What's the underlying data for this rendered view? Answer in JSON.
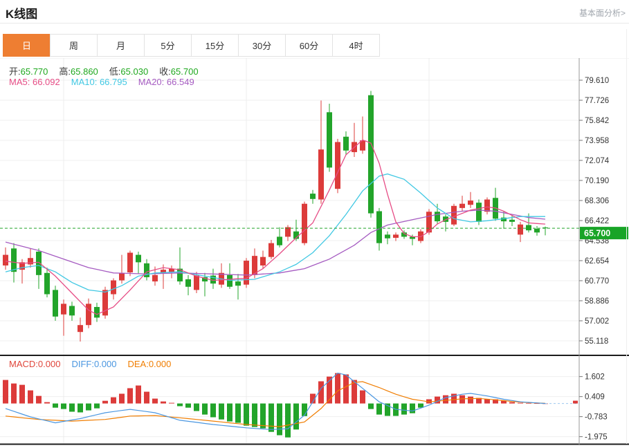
{
  "header": {
    "title": "K线图",
    "link": "基本面分析>"
  },
  "tabs": {
    "items": [
      {
        "label": "日",
        "active": true
      },
      {
        "label": "周",
        "active": false
      },
      {
        "label": "月",
        "active": false
      },
      {
        "label": "5分",
        "active": false
      },
      {
        "label": "15分",
        "active": false
      },
      {
        "label": "30分",
        "active": false
      },
      {
        "label": "60分",
        "active": false
      },
      {
        "label": "4时",
        "active": false
      }
    ]
  },
  "legend": {
    "ohlc": [
      {
        "label": "开:",
        "value": "65.770"
      },
      {
        "label": "高:",
        "value": "65.860"
      },
      {
        "label": "低:",
        "value": "65.030"
      },
      {
        "label": "收:",
        "value": "65.700"
      }
    ],
    "ma": [
      {
        "label": "MA5:",
        "value": "66.092",
        "color": "#e64c85"
      },
      {
        "label": "MA10:",
        "value": "66.795",
        "color": "#41c8e3"
      },
      {
        "label": "MA20:",
        "value": "66.549",
        "color": "#a55bc1"
      }
    ],
    "macd": [
      {
        "label": "MACD:",
        "value": "0.000",
        "color": "#e0453a"
      },
      {
        "label": "DIFF:",
        "value": "0.000",
        "color": "#4a96e0"
      },
      {
        "label": "DEA:",
        "value": "0.000",
        "color": "#f07d00"
      }
    ]
  },
  "colors": {
    "up": "#dc3b3a",
    "down": "#22a42a",
    "badge": "#18a427",
    "tab_active": "#ee7e32",
    "ma5": "#e64c85",
    "ma10": "#41c8e3",
    "ma20": "#a55bc1",
    "diff_line": "#4a96e0",
    "dea_line": "#f07d00",
    "grid": "#efefef",
    "axis_line": "#999999"
  },
  "chart_data": {
    "type": "candlestick",
    "panels": [
      "price-with-moving-averages",
      "macd"
    ],
    "title": "K线图",
    "period_selected": "日",
    "y_axis_labels": [
      "79.610",
      "77.726",
      "75.842",
      "73.958",
      "72.074",
      "70.190",
      "68.306",
      "66.422",
      "64.538",
      "62.654",
      "60.770",
      "58.886",
      "57.002",
      "55.118"
    ],
    "y_axis_top": 79.61,
    "y_axis_step": 1.884,
    "current_price": 65.7,
    "current_price_label": "65.700",
    "ohlc_latest": {
      "open": 65.77,
      "high": 65.86,
      "low": 65.03,
      "close": 65.7
    },
    "ma_latest": {
      "ma5": 66.092,
      "ma10": 66.795,
      "ma20": 66.549
    },
    "macd_latest": {
      "macd": 0.0,
      "diff": 0.0,
      "dea": 0.0
    },
    "candles": [
      [
        62.2,
        63.9,
        61.8,
        63.2
      ],
      [
        63.8,
        64.3,
        60.6,
        61.6
      ],
      [
        61.8,
        62.8,
        60.5,
        62.5
      ],
      [
        62.3,
        63.8,
        62.0,
        62.9
      ],
      [
        63.5,
        63.8,
        60.0,
        61.3
      ],
      [
        61.5,
        62.0,
        59.2,
        59.5
      ],
      [
        59.9,
        60.3,
        57.0,
        57.4
      ],
      [
        57.6,
        59.0,
        55.6,
        58.6
      ],
      [
        58.4,
        58.8,
        57.0,
        57.5
      ],
      [
        55.95,
        57.3,
        55.05,
        56.6
      ],
      [
        56.6,
        59.1,
        56.3,
        58.6
      ],
      [
        58.3,
        58.7,
        56.9,
        57.3
      ],
      [
        57.5,
        60.2,
        57.2,
        59.9
      ],
      [
        59.5,
        61.0,
        59.0,
        60.8
      ],
      [
        60.8,
        63.2,
        60.5,
        61.5
      ],
      [
        61.55,
        63.6,
        61.2,
        63.4
      ],
      [
        63.2,
        63.5,
        61.4,
        62.5
      ],
      [
        62.4,
        62.8,
        60.8,
        61.1
      ],
      [
        60.7,
        62.1,
        60.3,
        61.3
      ],
      [
        61.5,
        62.3,
        60.0,
        61.8
      ],
      [
        61.6,
        62.2,
        61.0,
        61.9
      ],
      [
        61.9,
        63.9,
        60.4,
        60.7
      ],
      [
        60.9,
        61.3,
        59.4,
        60.2
      ],
      [
        59.9,
        61.6,
        59.6,
        61.25
      ],
      [
        61.1,
        61.5,
        59.3,
        60.7
      ],
      [
        61.25,
        61.9,
        60.0,
        60.5
      ],
      [
        60.4,
        62.4,
        60.1,
        61.5
      ],
      [
        61.3,
        62.4,
        60.0,
        60.2
      ],
      [
        60.7,
        61.4,
        59.0,
        60.3
      ],
      [
        60.4,
        62.9,
        60.1,
        62.65
      ],
      [
        61.3,
        63.8,
        61.0,
        63.1
      ],
      [
        62.2,
        63.6,
        61.9,
        63.0
      ],
      [
        63.0,
        64.6,
        62.8,
        64.3
      ],
      [
        64.9,
        65.8,
        63.9,
        64.1
      ],
      [
        64.9,
        66.0,
        64.5,
        65.8
      ],
      [
        65.4,
        66.5,
        64.5,
        64.7
      ],
      [
        64.3,
        68.2,
        64.1,
        68.0
      ],
      [
        68.95,
        69.3,
        68.0,
        68.45
      ],
      [
        68.4,
        77.7,
        68.0,
        73.1
      ],
      [
        76.6,
        77.4,
        71.0,
        71.4
      ],
      [
        69.4,
        74.1,
        69.0,
        73.8
      ],
      [
        74.3,
        74.8,
        72.6,
        73.0
      ],
      [
        72.85,
        75.6,
        72.4,
        73.8
      ],
      [
        73.0,
        76.2,
        72.7,
        73.95
      ],
      [
        78.2,
        78.6,
        66.7,
        67.1
      ],
      [
        67.3,
        67.6,
        63.6,
        64.3
      ],
      [
        65.1,
        65.4,
        64.2,
        64.75
      ],
      [
        64.8,
        65.3,
        64.5,
        65.1
      ],
      [
        65.3,
        65.5,
        64.7,
        64.9
      ],
      [
        64.9,
        65.1,
        64.1,
        64.7
      ],
      [
        64.5,
        65.6,
        64.3,
        65.4
      ],
      [
        65.3,
        67.5,
        65.1,
        67.25
      ],
      [
        67.25,
        68.0,
        66.1,
        66.35
      ],
      [
        66.8,
        67.0,
        65.4,
        66.3
      ],
      [
        66.05,
        68.0,
        65.9,
        67.8
      ],
      [
        67.6,
        68.75,
        67.3,
        68.0
      ],
      [
        67.9,
        69.1,
        67.6,
        68.3
      ],
      [
        68.1,
        68.4,
        66.0,
        66.3
      ],
      [
        67.25,
        68.6,
        67.0,
        68.4
      ],
      [
        68.55,
        69.5,
        66.4,
        66.6
      ],
      [
        66.7,
        67.3,
        65.65,
        66.35
      ],
      [
        66.5,
        66.9,
        65.9,
        66.3
      ],
      [
        65.1,
        66.3,
        64.4,
        66.05
      ],
      [
        66.0,
        67.1,
        65.3,
        65.5
      ],
      [
        65.65,
        65.9,
        65.0,
        65.3
      ],
      [
        65.77,
        65.86,
        65.03,
        65.7
      ]
    ],
    "ma5": [
      [
        1,
        62.6
      ],
      [
        3,
        62.4
      ],
      [
        5,
        62.5
      ],
      [
        7,
        61.2
      ],
      [
        9,
        59.6
      ],
      [
        11,
        58.0
      ],
      [
        12,
        57.6
      ],
      [
        14,
        58.3
      ],
      [
        16,
        59.9
      ],
      [
        18,
        61.6
      ],
      [
        20,
        62.0
      ],
      [
        22,
        61.8
      ],
      [
        24,
        61.2
      ],
      [
        26,
        60.8
      ],
      [
        28,
        60.9
      ],
      [
        30,
        61.0
      ],
      [
        32,
        61.9
      ],
      [
        34,
        63.3
      ],
      [
        36,
        64.8
      ],
      [
        38,
        66.2
      ],
      [
        40,
        69.3
      ],
      [
        42,
        72.6
      ],
      [
        44,
        74.0
      ],
      [
        45,
        73.7
      ],
      [
        46,
        71.8
      ],
      [
        47,
        68.9
      ],
      [
        48,
        66.3
      ],
      [
        49,
        65.2
      ],
      [
        50,
        64.9
      ],
      [
        51,
        64.9
      ],
      [
        52,
        65.4
      ],
      [
        53,
        66.1
      ],
      [
        54,
        66.5
      ],
      [
        55,
        66.8
      ],
      [
        57,
        67.4
      ],
      [
        59,
        67.7
      ],
      [
        60,
        67.6
      ],
      [
        61,
        67.3
      ],
      [
        62,
        66.9
      ],
      [
        63,
        66.5
      ],
      [
        64,
        66.2
      ],
      [
        66,
        66.09
      ]
    ],
    "ma10": [
      [
        1,
        61.6
      ],
      [
        3,
        62.0
      ],
      [
        5,
        62.2
      ],
      [
        7,
        61.6
      ],
      [
        9,
        60.6
      ],
      [
        11,
        59.9
      ],
      [
        13,
        59.7
      ],
      [
        15,
        60.3
      ],
      [
        17,
        61.2
      ],
      [
        19,
        61.5
      ],
      [
        22,
        61.6
      ],
      [
        25,
        61.2
      ],
      [
        28,
        60.8
      ],
      [
        31,
        60.9
      ],
      [
        34,
        61.6
      ],
      [
        36,
        62.3
      ],
      [
        38,
        63.4
      ],
      [
        40,
        65.0
      ],
      [
        42,
        67.0
      ],
      [
        44,
        69.2
      ],
      [
        46,
        70.6
      ],
      [
        47,
        70.8
      ],
      [
        49,
        70.3
      ],
      [
        51,
        69.0
      ],
      [
        53,
        67.6
      ],
      [
        55,
        66.6
      ],
      [
        57,
        66.3
      ],
      [
        59,
        66.4
      ],
      [
        61,
        66.6
      ],
      [
        63,
        66.8
      ],
      [
        66,
        66.8
      ]
    ],
    "ma20": [
      [
        1,
        64.4
      ],
      [
        3,
        64.0
      ],
      [
        5,
        63.6
      ],
      [
        8,
        62.8
      ],
      [
        11,
        62.0
      ],
      [
        14,
        61.5
      ],
      [
        18,
        61.4
      ],
      [
        22,
        61.5
      ],
      [
        26,
        61.4
      ],
      [
        30,
        61.3
      ],
      [
        34,
        61.5
      ],
      [
        37,
        61.9
      ],
      [
        40,
        62.8
      ],
      [
        43,
        64.1
      ],
      [
        45,
        65.3
      ],
      [
        47,
        66.0
      ],
      [
        50,
        66.5
      ],
      [
        53,
        67.0
      ],
      [
        56,
        67.3
      ],
      [
        58,
        67.4
      ],
      [
        60,
        67.3
      ],
      [
        62,
        67.0
      ],
      [
        64,
        66.7
      ],
      [
        66,
        66.55
      ]
    ],
    "macd_hist": [
      1.4,
      1.19,
      1.11,
      0.78,
      0.45,
      0.08,
      -0.25,
      -0.33,
      -0.49,
      -0.53,
      -0.41,
      -0.29,
      0.16,
      0.37,
      0.58,
      0.91,
      1.07,
      0.7,
      0.29,
      0.12,
      0.04,
      -0.16,
      -0.25,
      -0.45,
      -0.66,
      -0.82,
      -0.95,
      -1.07,
      -1.15,
      -1.32,
      -1.4,
      -1.48,
      -1.69,
      -1.89,
      -2.02,
      -1.55,
      -0.75,
      0.58,
      1.32,
      1.6,
      1.81,
      1.73,
      1.4,
      0.78,
      -0.33,
      -0.66,
      -0.74,
      -0.74,
      -0.66,
      -0.58,
      -0.25,
      0.25,
      0.41,
      0.49,
      0.58,
      0.49,
      0.41,
      0.33,
      0.25,
      0.25,
      0.16,
      0.08,
      0.04,
      0.02,
      0.01,
      0.0
    ],
    "diff": [
      [
        1,
        -0.3
      ],
      [
        4,
        -0.8
      ],
      [
        7,
        -1.15
      ],
      [
        10,
        -0.9
      ],
      [
        13,
        -0.55
      ],
      [
        16,
        -0.35
      ],
      [
        19,
        -0.55
      ],
      [
        22,
        -1.0
      ],
      [
        26,
        -1.25
      ],
      [
        30,
        -1.45
      ],
      [
        33,
        -1.55
      ],
      [
        35,
        -1.5
      ],
      [
        37,
        -0.7
      ],
      [
        39,
        0.9
      ],
      [
        41,
        1.81
      ],
      [
        42,
        1.7
      ],
      [
        44,
        0.9
      ],
      [
        46,
        0.1
      ],
      [
        48,
        -0.35
      ],
      [
        50,
        -0.45
      ],
      [
        52,
        -0.1
      ],
      [
        54,
        0.35
      ],
      [
        56,
        0.55
      ],
      [
        57,
        0.6
      ],
      [
        59,
        0.45
      ],
      [
        61,
        0.25
      ],
      [
        63,
        0.1
      ],
      [
        66,
        0.0
      ]
    ],
    "dea": [
      [
        1,
        -0.75
      ],
      [
        5,
        -0.95
      ],
      [
        9,
        -1.05
      ],
      [
        13,
        -0.95
      ],
      [
        16,
        -0.75
      ],
      [
        19,
        -0.72
      ],
      [
        22,
        -0.85
      ],
      [
        26,
        -1.05
      ],
      [
        30,
        -1.25
      ],
      [
        34,
        -1.38
      ],
      [
        37,
        -1.1
      ],
      [
        39,
        -0.3
      ],
      [
        41,
        0.75
      ],
      [
        43,
        1.25
      ],
      [
        44,
        1.3
      ],
      [
        46,
        0.95
      ],
      [
        48,
        0.55
      ],
      [
        50,
        0.25
      ],
      [
        52,
        0.1
      ],
      [
        54,
        0.18
      ],
      [
        56,
        0.28
      ],
      [
        58,
        0.3
      ],
      [
        60,
        0.22
      ],
      [
        62,
        0.12
      ],
      [
        64,
        0.05
      ],
      [
        66,
        0.01
      ]
    ],
    "macd_axis_labels": [
      "1.602",
      "0.409",
      "-0.783",
      "-1.975"
    ],
    "grid": true,
    "legend_position": "top-left-overlay"
  }
}
